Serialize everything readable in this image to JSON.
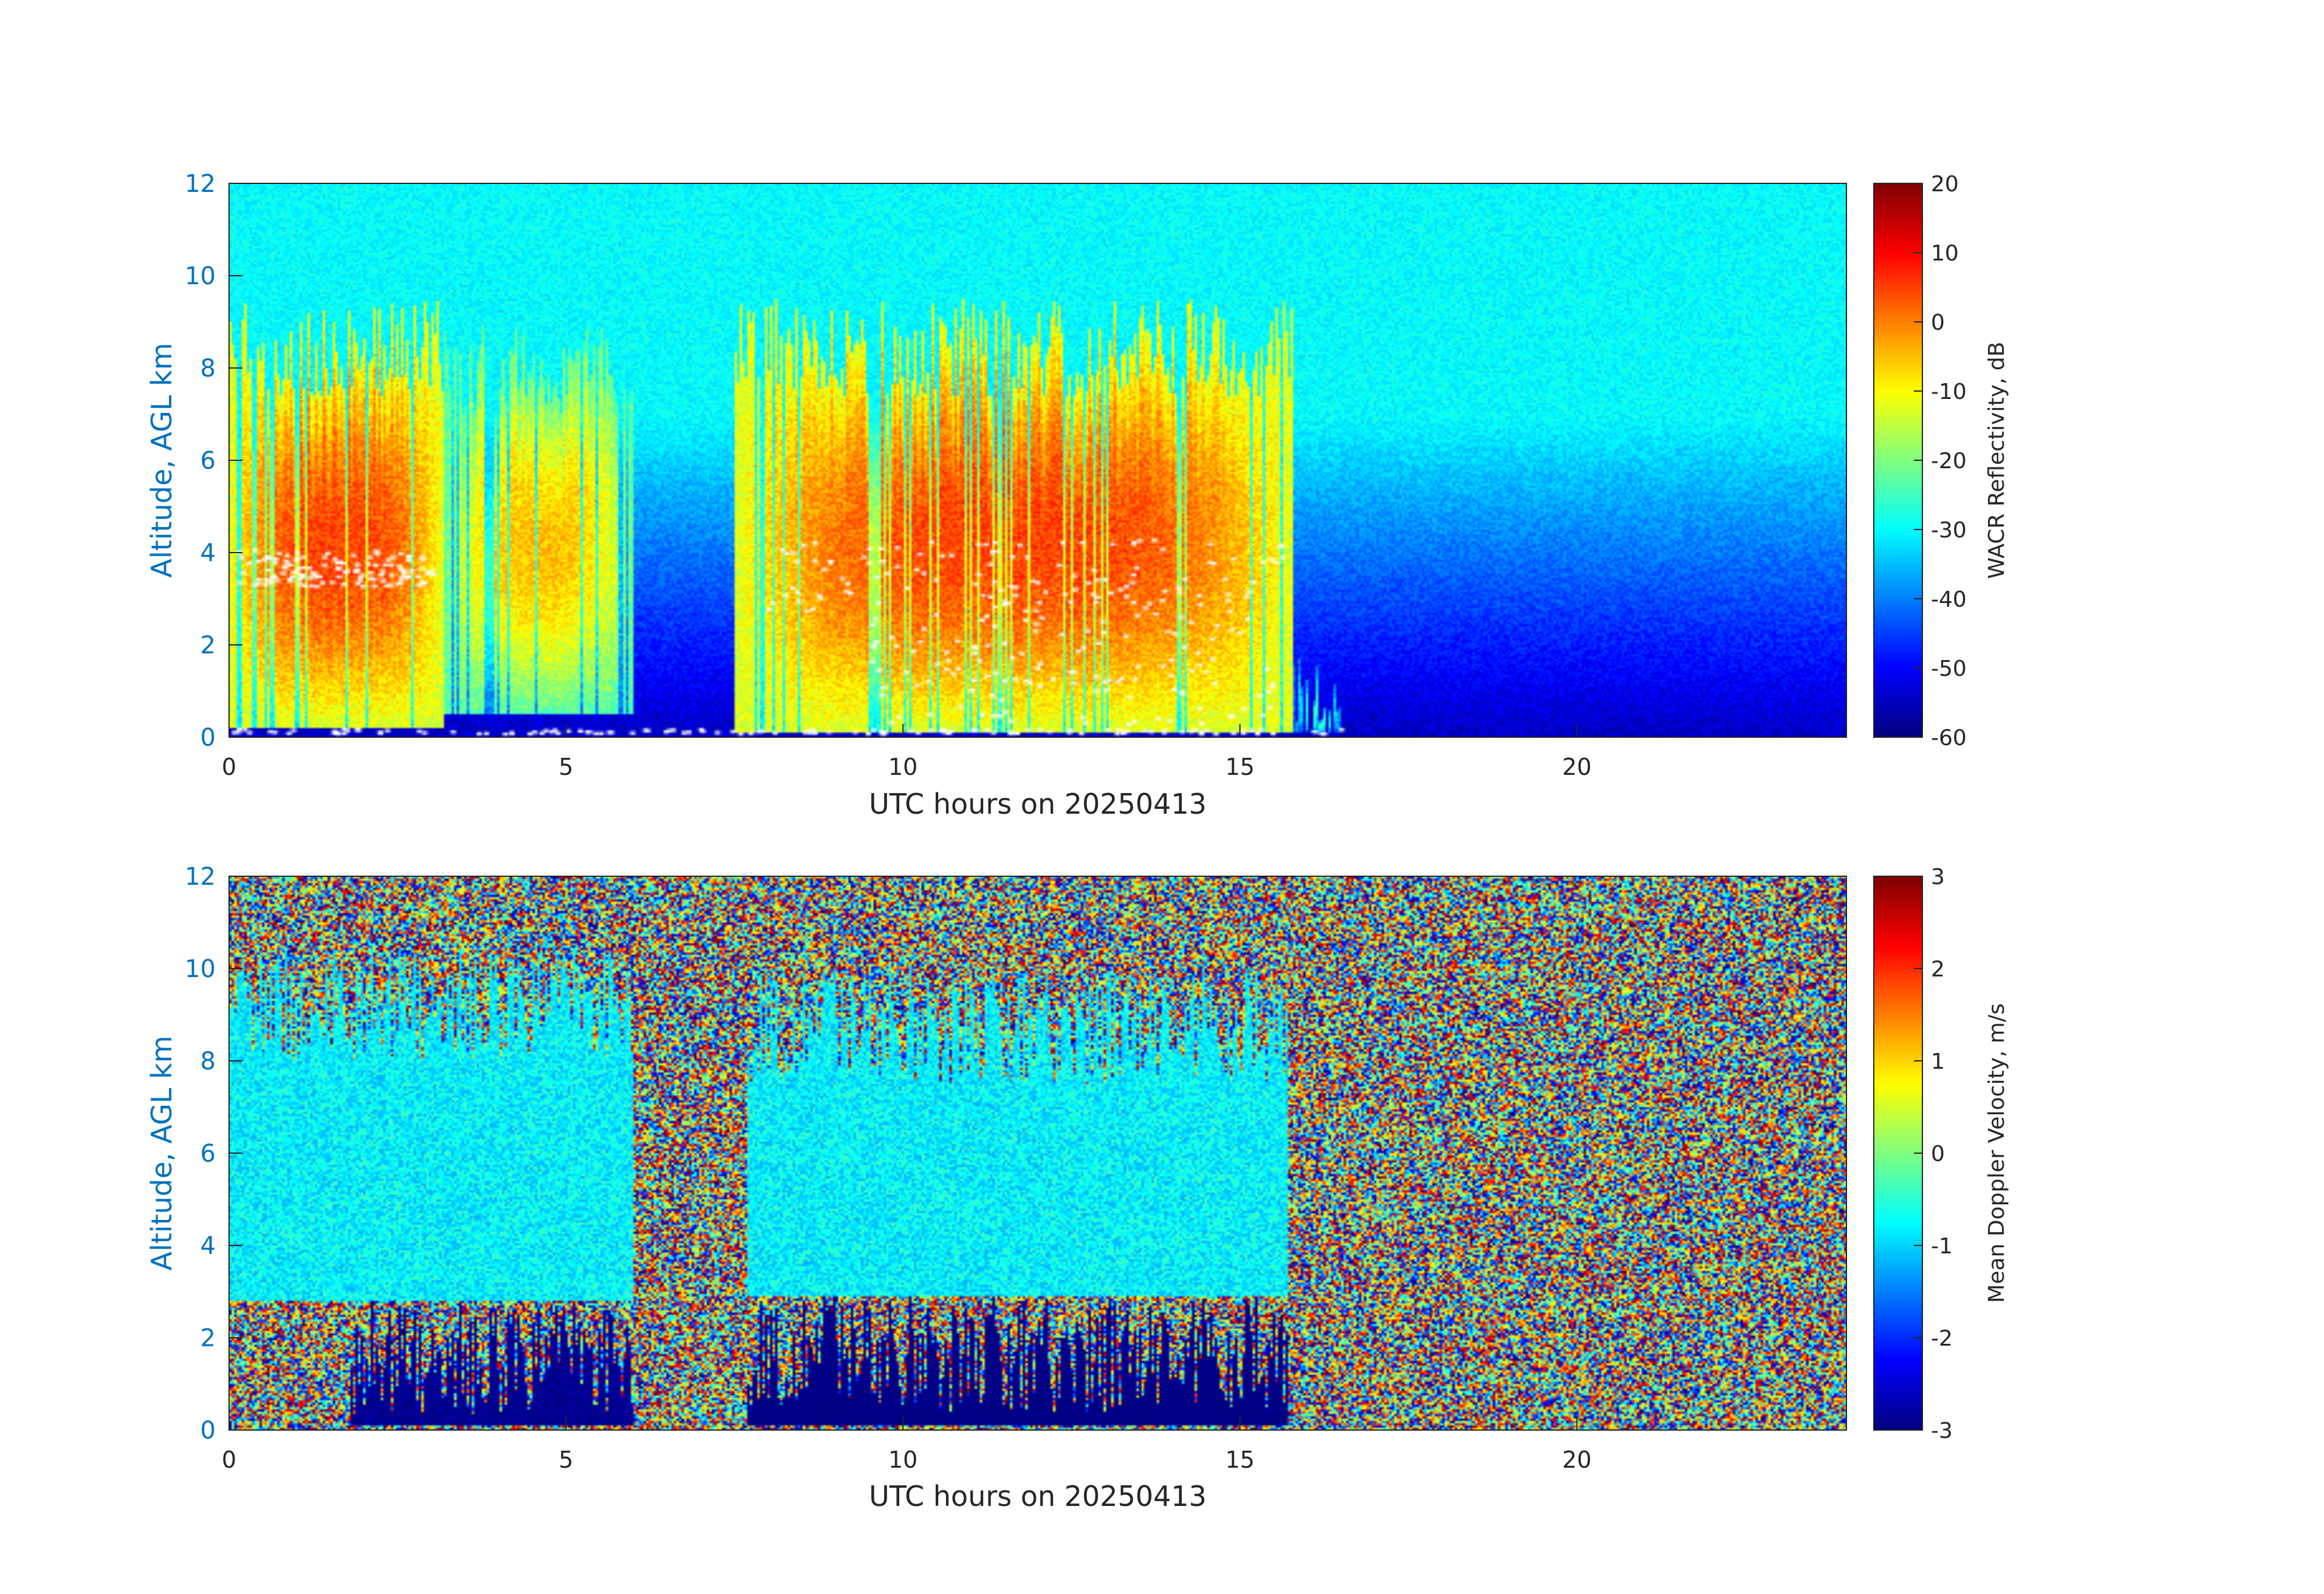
{
  "chart_data": [
    {
      "type": "heatmap",
      "panel": "top",
      "xlabel": "UTC hours on 20250413",
      "ylabel": "Altitude, AGL km",
      "xlim": [
        0,
        24
      ],
      "ylim": [
        0,
        12
      ],
      "xticks": [
        0,
        5,
        10,
        15,
        20
      ],
      "yticks": [
        0,
        2,
        4,
        6,
        8,
        10,
        12
      ],
      "colorbar": {
        "label": "WACR Reflectivity, dB",
        "ticks": [
          20,
          10,
          0,
          -10,
          -20,
          -30,
          -40,
          -50,
          -60
        ],
        "range": [
          -60,
          20
        ],
        "colormap": "jet"
      },
      "background": {
        "top_value": -30,
        "bottom_value": -55
      },
      "cloud_regions": [
        {
          "x": [
            0,
            3.2
          ],
          "y": [
            0.2,
            9.5
          ],
          "peak_value": 5
        },
        {
          "x": [
            3.2,
            6.0
          ],
          "y": [
            0.5,
            9.0
          ],
          "peak_value": -5
        },
        {
          "x": [
            7.5,
            15.8
          ],
          "y": [
            0.1,
            9.5
          ],
          "peak_value": 5
        },
        {
          "x": [
            15.8,
            16.5
          ],
          "y": [
            0.1,
            2.0
          ],
          "peak_value": -25
        }
      ],
      "markers": {
        "color": "#ffffff",
        "description": "melting layer / cloud base points near 3-4 km and surface"
      }
    },
    {
      "type": "heatmap",
      "panel": "bottom",
      "xlabel": "UTC hours on 20250413",
      "ylabel": "Altitude, AGL km",
      "xlim": [
        0,
        24
      ],
      "ylim": [
        0,
        12
      ],
      "xticks": [
        0,
        5,
        10,
        15,
        20
      ],
      "yticks": [
        0,
        2,
        4,
        6,
        8,
        10,
        12
      ],
      "colorbar": {
        "label": "Mean Doppler Velocity, m/s",
        "ticks": [
          3,
          2,
          1,
          0,
          -1,
          -2,
          -3
        ],
        "range": [
          -3,
          3
        ],
        "colormap": "jet"
      },
      "background": "noise",
      "cloud_regions": [
        {
          "x": [
            0,
            6.0
          ],
          "y": [
            2.8,
            10.5
          ],
          "value": -0.8
        },
        {
          "x": [
            1.8,
            6.0
          ],
          "y": [
            0.1,
            2.8
          ],
          "value": -2.9
        },
        {
          "x": [
            7.7,
            15.7
          ],
          "y": [
            2.9,
            10.0
          ],
          "value": -0.8
        },
        {
          "x": [
            7.7,
            15.7
          ],
          "y": [
            0.1,
            2.9
          ],
          "value": -3.0
        }
      ]
    }
  ],
  "colors": {
    "ytick_color": "#0072bd",
    "text_color": "#262626",
    "axes_color": "#262626"
  }
}
